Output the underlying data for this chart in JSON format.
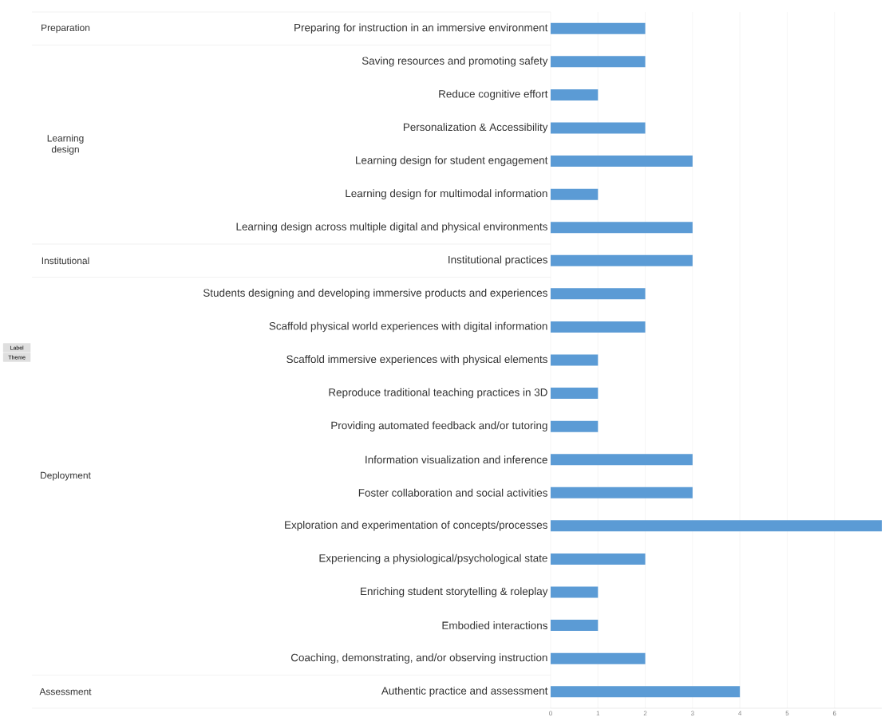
{
  "chart_data": {
    "type": "bar",
    "orientation": "horizontal",
    "color": "#5b9bd5",
    "grid": "x",
    "categories": [
      "Preparing for instruction in an immersive environment",
      "Saving resources and promoting safety",
      "Reduce cognitive effort",
      "Personalization & Accessibility",
      "Learning design for student engagement",
      "Learning design for multimodal information",
      "Learning design across multiple digital and physical environments",
      "Institutional practices",
      "Students designing and developing immersive products and experiences",
      "Scaffold physical world experiences with digital information",
      "Scaffold immersive experiences with physical elements",
      "Reproduce traditional teaching practices in 3D",
      "Providing automated feedback and/or tutoring",
      "Information visualization and inference",
      "Foster collaboration and social activities",
      "Exploration and experimentation of concepts/processes",
      "Experiencing a physiological/psychological state",
      "Enriching student storytelling & roleplay",
      "Embodied interactions",
      "Coaching, demonstrating, and/or observing instruction",
      "Authentic practice and assessment"
    ],
    "values": [
      2,
      2,
      1,
      2,
      3,
      1,
      3,
      3,
      2,
      2,
      1,
      1,
      1,
      3,
      3,
      7,
      2,
      1,
      1,
      2,
      4
    ],
    "xlim": [
      0,
      7
    ],
    "xticks": [
      0,
      1,
      2,
      3,
      4,
      5,
      6
    ],
    "annotations": [
      "Preparation",
      "Learning design",
      "Institutional",
      "Deployment",
      "Assessment",
      "Label",
      "Theme"
    ]
  }
}
